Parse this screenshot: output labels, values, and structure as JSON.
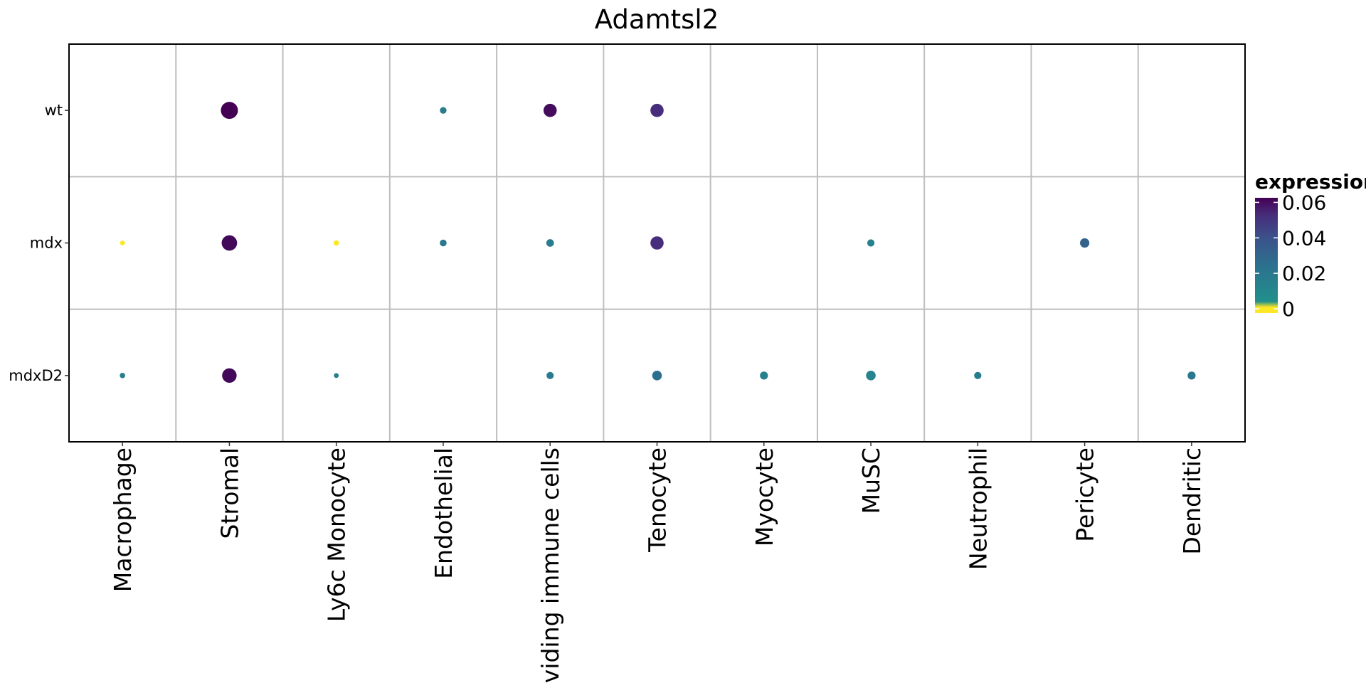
{
  "chart_data": {
    "type": "dot",
    "title": "Adamtsl2",
    "categories": [
      "Macrophage",
      "Stromal",
      "Ly6c Monocyte",
      "Endothelial",
      "Dividing immune cells",
      "Tenocyte",
      "Myocyte",
      "MuSC",
      "Neutrophil",
      "Pericyte",
      "Dendritic"
    ],
    "groups": [
      "wt",
      "mdx",
      "mdxD2"
    ],
    "grid": true,
    "legend": {
      "title": "expression",
      "placement": "right",
      "ticks": [
        0.06,
        0.04,
        0.02,
        0
      ],
      "range": [
        0,
        0.065
      ],
      "colors": [
        "#FDE725",
        "#21908C",
        "#3B528B",
        "#440154"
      ]
    },
    "points": [
      {
        "group": "wt",
        "category": "Stromal",
        "expression": 0.065,
        "size": 1.0
      },
      {
        "group": "wt",
        "category": "Endothelial",
        "expression": 0.02,
        "size": 0.15
      },
      {
        "group": "wt",
        "category": "Dividing immune cells",
        "expression": 0.062,
        "size": 0.6
      },
      {
        "group": "wt",
        "category": "Tenocyte",
        "expression": 0.052,
        "size": 0.6
      },
      {
        "group": "mdx",
        "category": "Macrophage",
        "expression": 0.0,
        "size": 0.08
      },
      {
        "group": "mdx",
        "category": "Stromal",
        "expression": 0.063,
        "size": 0.82
      },
      {
        "group": "mdx",
        "category": "Ly6c Monocyte",
        "expression": 0.0,
        "size": 0.1
      },
      {
        "group": "mdx",
        "category": "Endothelial",
        "expression": 0.022,
        "size": 0.16
      },
      {
        "group": "mdx",
        "category": "Dividing immune cells",
        "expression": 0.02,
        "size": 0.2
      },
      {
        "group": "mdx",
        "category": "Tenocyte",
        "expression": 0.052,
        "size": 0.6
      },
      {
        "group": "mdx",
        "category": "MuSC",
        "expression": 0.018,
        "size": 0.18
      },
      {
        "group": "mdx",
        "category": "Pericyte",
        "expression": 0.032,
        "size": 0.3
      },
      {
        "group": "mdxD2",
        "category": "Macrophage",
        "expression": 0.018,
        "size": 0.1
      },
      {
        "group": "mdxD2",
        "category": "Stromal",
        "expression": 0.063,
        "size": 0.72
      },
      {
        "group": "mdxD2",
        "category": "Ly6c Monocyte",
        "expression": 0.02,
        "size": 0.08
      },
      {
        "group": "mdxD2",
        "category": "Dividing immune cells",
        "expression": 0.02,
        "size": 0.18
      },
      {
        "group": "mdxD2",
        "category": "Tenocyte",
        "expression": 0.026,
        "size": 0.32
      },
      {
        "group": "mdxD2",
        "category": "Myocyte",
        "expression": 0.018,
        "size": 0.22
      },
      {
        "group": "mdxD2",
        "category": "MuSC",
        "expression": 0.016,
        "size": 0.32
      },
      {
        "group": "mdxD2",
        "category": "Neutrophil",
        "expression": 0.02,
        "size": 0.18
      },
      {
        "group": "mdxD2",
        "category": "Dendritic",
        "expression": 0.022,
        "size": 0.22
      }
    ]
  }
}
